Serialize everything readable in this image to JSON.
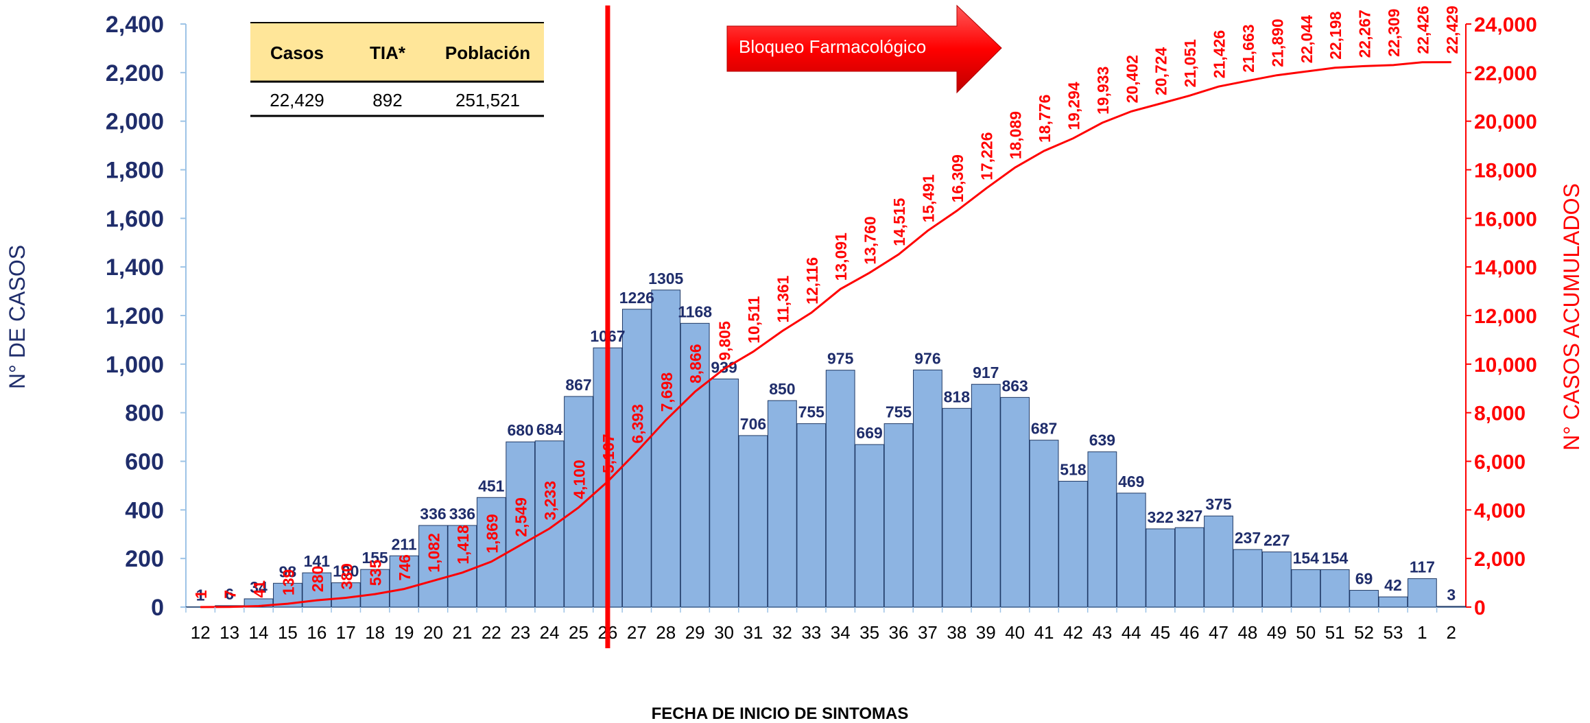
{
  "chart_data": {
    "type": "bar",
    "xlabel": "FECHA DE INICIO DE SINTOMAS",
    "ylabel": "N° DE CASOS",
    "y2label": "N° CASOS ACUMULADOS",
    "ylim": [
      0,
      2400
    ],
    "y2lim": [
      0,
      24000
    ],
    "yticks": [
      "0",
      "200",
      "400",
      "600",
      "800",
      "1,000",
      "1,200",
      "1,400",
      "1,600",
      "1,800",
      "2,000",
      "2,200",
      "2,400"
    ],
    "y2ticks": [
      "0",
      "2,000",
      "4,000",
      "6,000",
      "8,000",
      "10,000",
      "12,000",
      "14,000",
      "16,000",
      "18,000",
      "20,000",
      "22,000",
      "24,000"
    ],
    "categories": [
      "12",
      "13",
      "14",
      "15",
      "16",
      "17",
      "18",
      "19",
      "20",
      "21",
      "22",
      "23",
      "24",
      "25",
      "26",
      "27",
      "28",
      "29",
      "30",
      "31",
      "32",
      "33",
      "34",
      "35",
      "36",
      "37",
      "38",
      "39",
      "40",
      "41",
      "42",
      "43",
      "44",
      "45",
      "46",
      "47",
      "48",
      "49",
      "50",
      "51",
      "52",
      "53",
      "1",
      "2"
    ],
    "series": [
      {
        "type": "bar",
        "values": [
          1,
          6,
          34,
          98,
          141,
          100,
          155,
          211,
          336,
          336,
          451,
          680,
          684,
          867,
          1067,
          1226,
          1305,
          1168,
          939,
          706,
          850,
          755,
          975,
          669,
          755,
          976,
          818,
          917,
          863,
          687,
          518,
          639,
          469,
          322,
          327,
          375,
          237,
          227,
          154,
          154,
          69,
          42,
          117,
          3
        ],
        "labels": [
          "1",
          "6",
          "34",
          "98",
          "141",
          "100",
          "155",
          "211",
          "336",
          "336",
          "451",
          "680",
          "684",
          "867",
          "1067",
          "1226",
          "1305",
          "1168",
          "939",
          "706",
          "850",
          "755",
          "975",
          "669",
          "755",
          "976",
          "818",
          "917",
          "863",
          "687",
          "518",
          "639",
          "469",
          "322",
          "327",
          "375",
          "237",
          "227",
          "154",
          "154",
          "69",
          "42",
          "117",
          "3"
        ],
        "color": "#8db4e2"
      },
      {
        "type": "line",
        "axis": "right",
        "values": [
          1,
          7,
          41,
          139,
          280,
          380,
          535,
          746,
          1082,
          1418,
          1869,
          2549,
          3233,
          4100,
          5167,
          6393,
          7698,
          8866,
          9805,
          10511,
          11361,
          12116,
          13091,
          13760,
          14515,
          15491,
          16309,
          17226,
          18089,
          18776,
          19294,
          19933,
          20402,
          20724,
          21051,
          21426,
          21663,
          21890,
          22044,
          22198,
          22267,
          22309,
          22426,
          22429
        ],
        "labels": [
          "1",
          "7",
          "41",
          "139",
          "280",
          "380",
          "535",
          "746",
          "1,082",
          "1,418",
          "1,869",
          "2,549",
          "3,233",
          "4,100",
          "5,167",
          "6,393",
          "7,698",
          "8,866",
          "9,805",
          "10,511",
          "11,361",
          "12,116",
          "13,091",
          "13,760",
          "14,515",
          "15,491",
          "16,309",
          "17,226",
          "18,089",
          "18,776",
          "19,294",
          "19,933",
          "20,402",
          "20,724",
          "21,051",
          "21,426",
          "21,663",
          "21,890",
          "22,044",
          "22,198",
          "22,267",
          "22,309",
          "22,426",
          "22,429"
        ],
        "color": "#ff0000"
      }
    ],
    "vertical_marker_category": "26",
    "annotation": "Bloqueo Farmacológico",
    "table": {
      "headers": [
        "Casos",
        "TIA*",
        "Población"
      ],
      "row": [
        "22,429",
        "892",
        "251,521"
      ]
    }
  },
  "colors": {
    "bar_fill": "#8db4e2",
    "bar_stroke": "#1f3864",
    "line": "#ff0000",
    "left_axis_text": "#1f2d6b",
    "right_axis_text": "#ff0000",
    "table_header_bg": "#ffe699",
    "arrow": "#ff0000"
  }
}
